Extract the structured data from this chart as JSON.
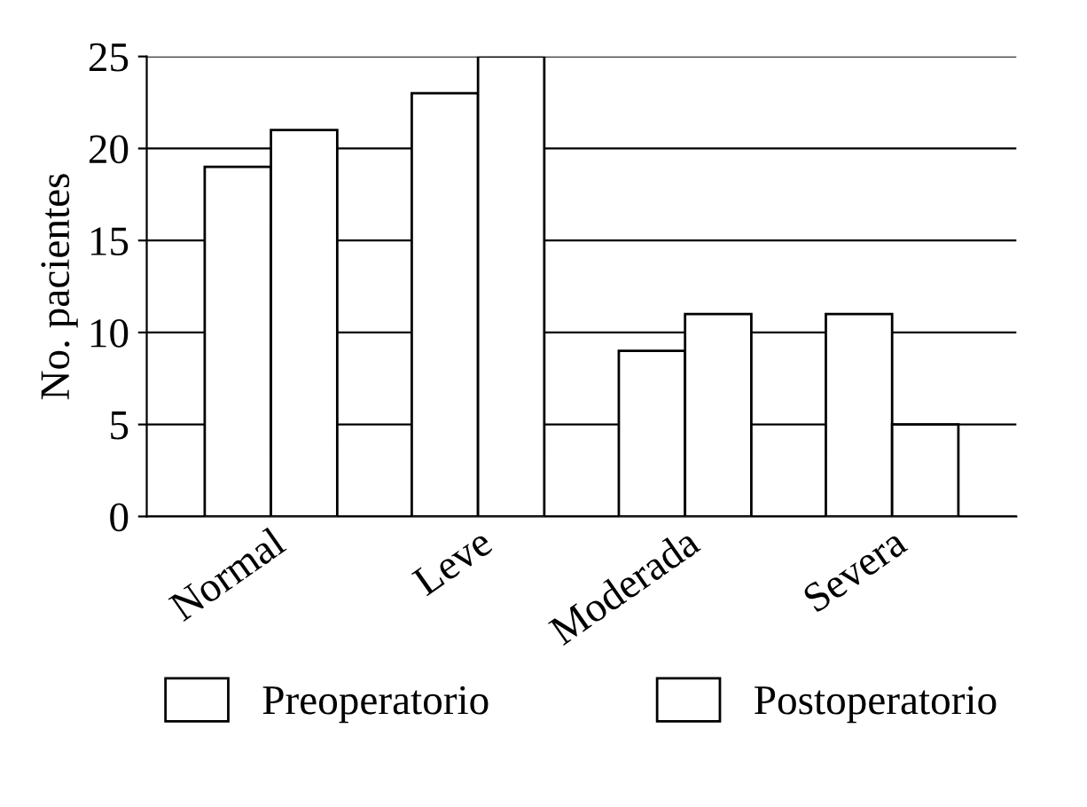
{
  "chart_data": {
    "type": "bar",
    "ylabel": "No. pacientes",
    "categories": [
      "Normal",
      "Leve",
      "Moderada",
      "Severa"
    ],
    "series": [
      {
        "name": "Preoperatorio",
        "color": "#ffffff",
        "values": [
          19,
          23,
          9,
          11
        ]
      },
      {
        "name": "Postoperatorio",
        "color": "#ffffff",
        "values": [
          21,
          25,
          11,
          5
        ]
      }
    ],
    "ylim": [
      0,
      25
    ],
    "yticks": [
      0,
      5,
      10,
      15,
      20,
      25
    ],
    "grid": "y",
    "legend": "bottom"
  }
}
